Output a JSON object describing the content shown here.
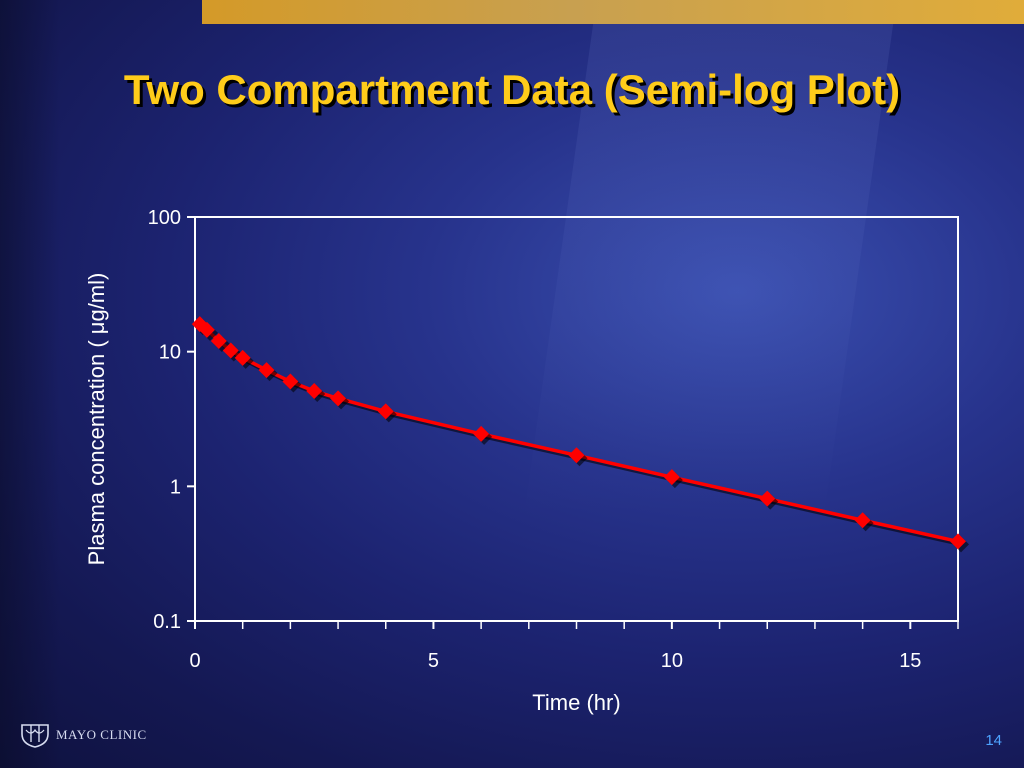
{
  "slide": {
    "title": "Two Compartment Data (Semi-log Plot)",
    "logo_text": "MAYO CLINIC",
    "page_number": "14"
  },
  "colors": {
    "title": "#ffcc1a",
    "series": "#ff0000",
    "axis": "#ffffff",
    "accent_bar": "#d49a28"
  },
  "chart_data": {
    "type": "scatter",
    "title": "",
    "xlabel": "Time (hr)",
    "ylabel": "Plasma concentration ( μg/ml)",
    "xlim": [
      0,
      16
    ],
    "ylim": [
      0.1,
      100
    ],
    "yscale": "log",
    "x_ticks": [
      0,
      5,
      10,
      15
    ],
    "x_tick_labels": [
      "0",
      "5",
      "10",
      "15"
    ],
    "x_minor_ticks": [
      1,
      2,
      3,
      4,
      6,
      7,
      8,
      9,
      11,
      12,
      13,
      14,
      16
    ],
    "y_ticks": [
      0.1,
      1,
      10,
      100
    ],
    "y_tick_labels": [
      "0.1",
      "1",
      "10",
      "100"
    ],
    "grid": false,
    "legend": "none",
    "series": [
      {
        "x": [
          0.1,
          0.25,
          0.5,
          0.75,
          1,
          1.5,
          2,
          2.5,
          3,
          4,
          6,
          8,
          10,
          12,
          14,
          16
        ],
        "y": [
          16,
          14.5,
          12,
          10.2,
          9,
          7.3,
          6,
          5.1,
          4.5,
          3.6,
          2.45,
          1.7,
          1.17,
          0.81,
          0.56,
          0.39
        ]
      }
    ]
  }
}
